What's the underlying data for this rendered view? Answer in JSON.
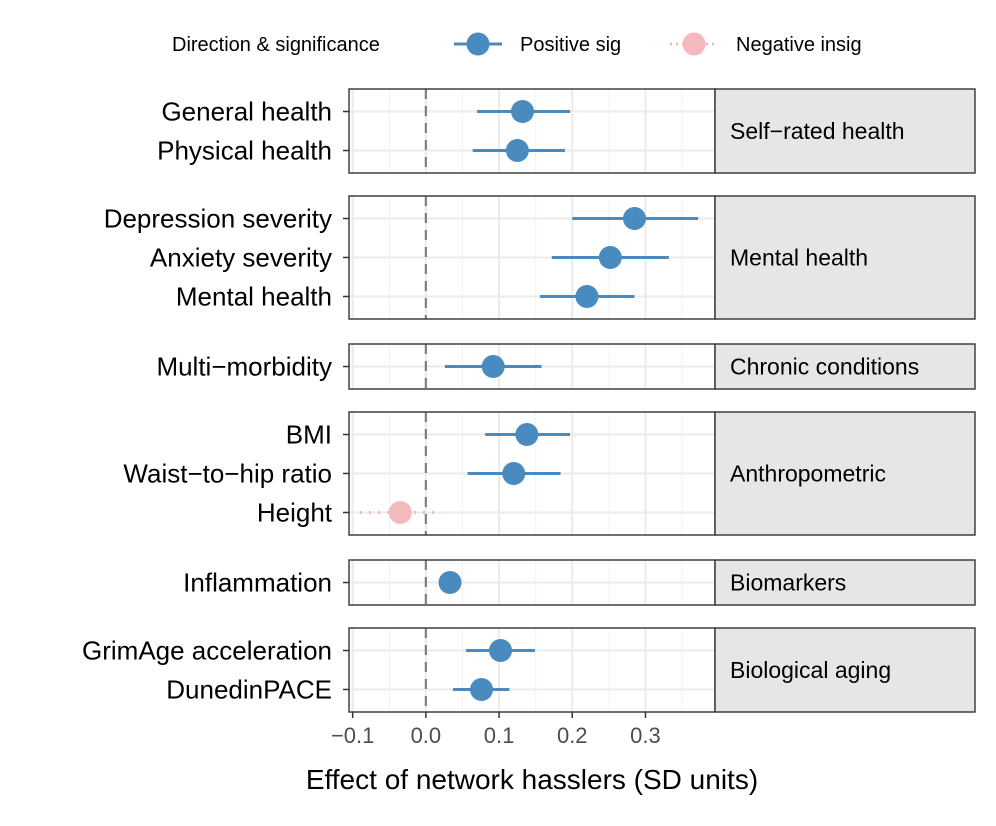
{
  "chart_data": {
    "type": "scatter",
    "subtype": "faceted forest plot (point estimates with confidence intervals)",
    "xlabel": "Effect of network hasslers (SD units)",
    "xlim": [
      -0.105,
      0.395
    ],
    "xticks": [
      -0.1,
      0.0,
      0.1,
      0.2,
      0.3
    ],
    "xtick_labels": [
      "−0.1",
      "0.0",
      "0.1",
      "0.2",
      "0.3"
    ],
    "reference_line": 0,
    "grid": true,
    "legend": {
      "position": "top",
      "title": "Direction & significance",
      "entries": [
        {
          "label": "Positive sig",
          "color": "#4a8bbf"
        },
        {
          "label": "Negative insig",
          "color": "#f3b9bd"
        }
      ]
    },
    "panels": [
      {
        "label": "Self−rated health",
        "rows": [
          {
            "label": "General health",
            "estimate": 0.132,
            "ci": [
              0.07,
              0.197
            ],
            "group": "Positive sig"
          },
          {
            "label": "Physical health",
            "estimate": 0.125,
            "ci": [
              0.064,
              0.19
            ],
            "group": "Positive sig"
          }
        ]
      },
      {
        "label": "Mental health",
        "rows": [
          {
            "label": "Depression severity",
            "estimate": 0.285,
            "ci": [
              0.2,
              0.372
            ],
            "group": "Positive sig"
          },
          {
            "label": "Anxiety severity",
            "estimate": 0.252,
            "ci": [
              0.172,
              0.332
            ],
            "group": "Positive sig"
          },
          {
            "label": "Mental health",
            "estimate": 0.22,
            "ci": [
              0.156,
              0.285
            ],
            "group": "Positive sig"
          }
        ]
      },
      {
        "label": "Chronic conditions",
        "rows": [
          {
            "label": "Multi−morbidity",
            "estimate": 0.092,
            "ci": [
              0.026,
              0.158
            ],
            "group": "Positive sig"
          }
        ]
      },
      {
        "label": "Anthropometric",
        "rows": [
          {
            "label": "BMI",
            "estimate": 0.138,
            "ci": [
              0.081,
              0.197
            ],
            "group": "Positive sig"
          },
          {
            "label": "Waist−to−hip ratio",
            "estimate": 0.12,
            "ci": [
              0.057,
              0.184
            ],
            "group": "Positive sig"
          },
          {
            "label": "Height",
            "estimate": -0.035,
            "ci": [
              -0.09,
              0.012
            ],
            "group": "Negative insig"
          }
        ]
      },
      {
        "label": "Biomarkers",
        "rows": [
          {
            "label": "Inflammation",
            "estimate": 0.033,
            "ci": [
              0.033,
              0.033
            ],
            "group": "Positive sig"
          }
        ]
      },
      {
        "label": "Biological aging",
        "rows": [
          {
            "label": "GrimAge acceleration",
            "estimate": 0.102,
            "ci": [
              0.055,
              0.149
            ],
            "group": "Positive sig"
          },
          {
            "label": "DunedinPACE",
            "estimate": 0.076,
            "ci": [
              0.037,
              0.114
            ],
            "group": "Positive sig"
          }
        ]
      }
    ]
  }
}
